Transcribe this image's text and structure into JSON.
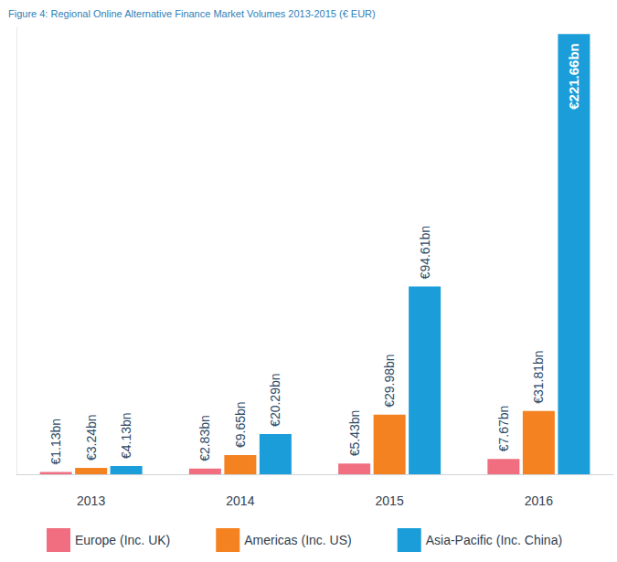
{
  "chart_data": {
    "type": "bar",
    "title": "Figure 4: Regional Online Alternative Finance Market Volumes 2013-2015 (€ EUR)",
    "categories": [
      "2013",
      "2014",
      "2015",
      "2016"
    ],
    "series": [
      {
        "name": "Europe (Inc. UK)",
        "color": "#f06e7f",
        "values": [
          1.13,
          2.83,
          5.43,
          7.67
        ],
        "value_labels": [
          "€1.13bn",
          "€2.83bn",
          "€5.43bn",
          "€7.67bn"
        ]
      },
      {
        "name": "Americas (Inc. US)",
        "color": "#f58220",
        "values": [
          3.24,
          9.65,
          29.98,
          31.81
        ],
        "value_labels": [
          "€3.24bn",
          "€9.65bn",
          "€29.98bn",
          "€31.81bn"
        ]
      },
      {
        "name": "Asia-Pacific (Inc. China)",
        "color": "#1a9dd9",
        "values": [
          4.13,
          20.29,
          94.61,
          221.66
        ],
        "value_labels": [
          "€4.13bn",
          "€20.29bn",
          "€94.61bn",
          "€221.66bn"
        ]
      }
    ],
    "ylim": [
      0,
      225
    ],
    "yticks": [],
    "grid": false,
    "legend": "bottom",
    "data_labels": true,
    "tick_labels": "x"
  }
}
